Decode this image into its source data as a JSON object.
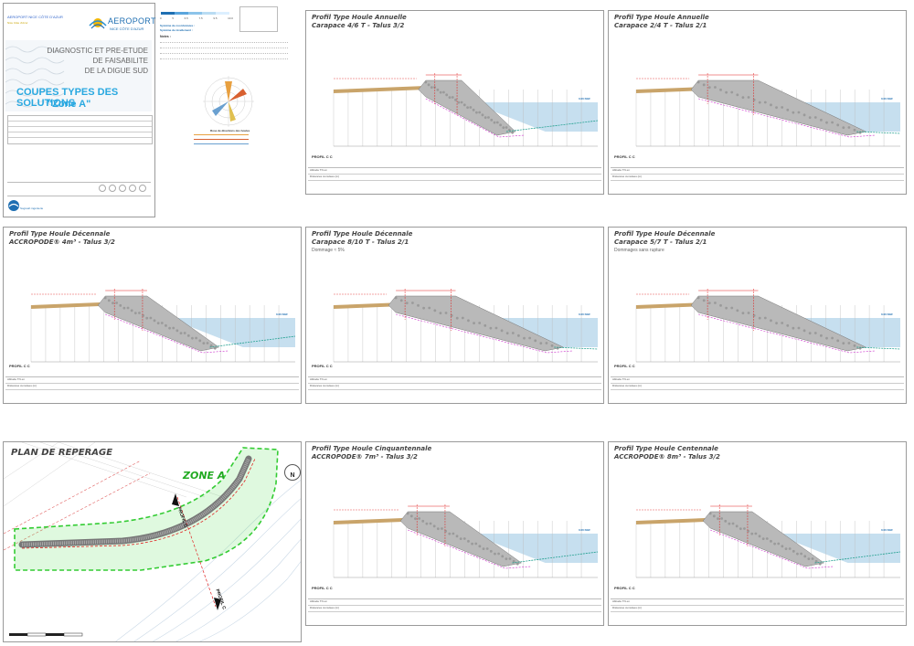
{
  "title_block": {
    "client_top": "AEROPORT NICE CÔTE D'AZUR",
    "client_sub": "Nice Côte d'Azur",
    "logo_main": "AEROPORT",
    "logo_sub": "NICE CÔTE D'AZUR",
    "project_lines": [
      "DIAGNOSTIC ET PRE-ETUDE",
      "DE FAISABILITE",
      "DE LA DIGUE SUD"
    ],
    "drawing_title": "COUPES TYPES DES SOLUTIONS",
    "zone_title": "\"Zone A\"",
    "designer": "Sogreah ingénierie"
  },
  "legend": {
    "scale_ticks": [
      "0",
      "5",
      "6.5",
      "7.5",
      "9.5",
      "10.0"
    ],
    "coord_label": "Système de coordonnées :",
    "altim_label": "Système de nivellement :",
    "notes_label": "Notes :",
    "rose_caption": "Rose de directions des houles"
  },
  "profiles": [
    {
      "title1": "Profil Type Houle Annuelle",
      "title2": "Carapace 4/6 T - Talus 3/2",
      "note": "",
      "label": "PROFIL C C",
      "level": "0.00 NGF",
      "variant": "a"
    },
    {
      "title1": "Profil Type Houle Annuelle",
      "title2": "Carapace 2/4 T - Talus 2/1",
      "note": "",
      "label": "PROFIL C C",
      "level": "0.00 NGF",
      "variant": "b"
    },
    {
      "title1": "Profil Type Houle Décennale",
      "title2": "ACCROPODE® 4m³ - Talus 3/2",
      "note": "",
      "label": "PROFIL C C",
      "level": "0.00 NGF",
      "variant": "c"
    },
    {
      "title1": "Profil Type Houle Décennale",
      "title2": "Carapace 8/10 T - Talus 2/1",
      "note": "Dommage ≈ 5%",
      "label": "PROFIL C C",
      "level": "0.00 NGF",
      "variant": "b"
    },
    {
      "title1": "Profil Type Houle Décennale",
      "title2": "Carapace 5/7 T - Talus 2/1",
      "note": "Dommages sans rupture",
      "label": "PROFIL C C",
      "level": "0.00 NGF",
      "variant": "b"
    },
    {
      "title1": "Profil Type Houle Cinquantennale",
      "title2": "ACCROPODE® 7m³ - Talus 3/2",
      "note": "",
      "label": "PROFIL C C",
      "level": "0.00 NGF",
      "variant": "c"
    },
    {
      "title1": "Profil Type Houle Centennale",
      "title2": "ACCROPODE® 8m³ - Talus 3/2",
      "note": "",
      "label": "PROFIL C C",
      "level": "0.00 NGF",
      "variant": "c"
    }
  ],
  "profile_foot": [
    "Altitude TN en",
    "Distances cumulées (m)"
  ],
  "map": {
    "title": "PLAN DE REPERAGE",
    "zone": "ZONE A",
    "profile_label_top": "PROFIL C",
    "profile_label_bottom": "PROFIL C",
    "north": "N"
  },
  "colors": {
    "sea": "#bcd9ec",
    "rock": "#b9b9b9",
    "sand": "#c9a46a",
    "zone": "#33cc33",
    "red": "#e02020",
    "magenta": "#cc33cc"
  }
}
